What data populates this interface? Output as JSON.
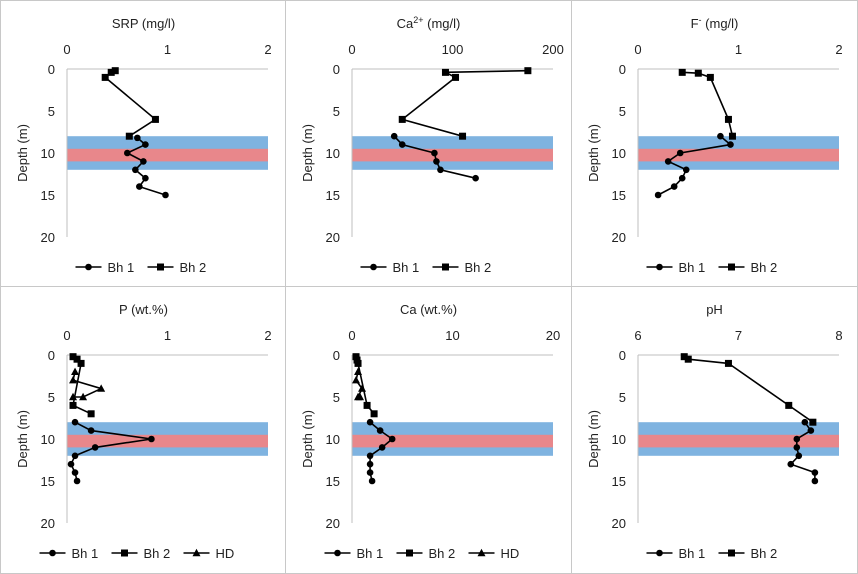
{
  "chart_data": [
    {
      "type": "line",
      "title": "SRP (mg/l)",
      "title_sup": "",
      "xlabel": "SRP (mg/l)",
      "ylabel": "Depth (m)",
      "xlim": [
        0,
        2
      ],
      "xticks": [
        "0",
        "1",
        "2"
      ],
      "ylim": [
        0,
        20
      ],
      "yticks": [
        "0",
        "5",
        "10",
        "15",
        "20"
      ],
      "bands": [
        {
          "from": 8,
          "to": 12,
          "color": "#7fb3e0"
        },
        {
          "from": 9.5,
          "to": 11,
          "color": "#e8878b"
        }
      ],
      "series": [
        {
          "name": "Bh 1",
          "marker": "circle",
          "points": [
            [
              0.7,
              8.2
            ],
            [
              0.78,
              9
            ],
            [
              0.6,
              10
            ],
            [
              0.76,
              11
            ],
            [
              0.68,
              12
            ],
            [
              0.78,
              13
            ],
            [
              0.72,
              14
            ],
            [
              0.98,
              15
            ]
          ]
        },
        {
          "name": "Bh 2",
          "marker": "square",
          "points": [
            [
              0.48,
              0.2
            ],
            [
              0.44,
              0.4
            ],
            [
              0.38,
              1
            ],
            [
              0.88,
              6
            ],
            [
              0.62,
              8
            ]
          ]
        }
      ]
    },
    {
      "type": "line",
      "title": "Ca",
      "title_sup": "2+",
      "title_rest": " (mg/l)",
      "xlabel": "Ca2+ (mg/l)",
      "ylabel": "Depth (m)",
      "xlim": [
        0,
        200
      ],
      "xticks": [
        "0",
        "100",
        "200"
      ],
      "ylim": [
        0,
        20
      ],
      "yticks": [
        "0",
        "5",
        "10",
        "15",
        "20"
      ],
      "bands": [
        {
          "from": 8,
          "to": 12,
          "color": "#7fb3e0"
        },
        {
          "from": 9.5,
          "to": 11,
          "color": "#e8878b"
        }
      ],
      "series": [
        {
          "name": "Bh 1",
          "marker": "circle",
          "points": [
            [
              42,
              8
            ],
            [
              50,
              9
            ],
            [
              82,
              10
            ],
            [
              84,
              11
            ],
            [
              88,
              12
            ],
            [
              123,
              13
            ]
          ]
        },
        {
          "name": "Bh 2",
          "marker": "square",
          "points": [
            [
              175,
              0.2
            ],
            [
              93,
              0.4
            ],
            [
              103,
              1
            ],
            [
              50,
              6
            ],
            [
              110,
              8
            ]
          ]
        }
      ]
    },
    {
      "type": "line",
      "title": "F",
      "title_sup": "-",
      "title_rest": " (mg/l)",
      "xlabel": "F- (mg/l)",
      "ylabel": "Depth (m)",
      "xlim": [
        0,
        2
      ],
      "xticks": [
        "0",
        "1",
        "2"
      ],
      "ylim": [
        0,
        20
      ],
      "yticks": [
        "0",
        "5",
        "10",
        "15",
        "20"
      ],
      "bands": [
        {
          "from": 8,
          "to": 12,
          "color": "#7fb3e0"
        },
        {
          "from": 9.5,
          "to": 11,
          "color": "#e8878b"
        }
      ],
      "series": [
        {
          "name": "Bh 1",
          "marker": "circle",
          "points": [
            [
              0.82,
              8
            ],
            [
              0.92,
              9
            ],
            [
              0.42,
              10
            ],
            [
              0.3,
              11
            ],
            [
              0.48,
              12
            ],
            [
              0.44,
              13
            ],
            [
              0.36,
              14
            ],
            [
              0.2,
              15
            ]
          ]
        },
        {
          "name": "Bh 2",
          "marker": "square",
          "points": [
            [
              0.44,
              0.4
            ],
            [
              0.6,
              0.5
            ],
            [
              0.72,
              1
            ],
            [
              0.9,
              6
            ],
            [
              0.94,
              8
            ]
          ]
        }
      ]
    },
    {
      "type": "line",
      "title": "P (wt.%)",
      "title_sup": "",
      "xlabel": "P (wt.%)",
      "ylabel": "Depth (m)",
      "xlim": [
        0,
        2
      ],
      "xticks": [
        "0",
        "1",
        "2"
      ],
      "ylim": [
        0,
        20
      ],
      "yticks": [
        "0",
        "5",
        "10",
        "15",
        "20"
      ],
      "bands": [
        {
          "from": 8,
          "to": 12,
          "color": "#7fb3e0"
        },
        {
          "from": 9.5,
          "to": 11,
          "color": "#e8878b"
        }
      ],
      "series": [
        {
          "name": "Bh 1",
          "marker": "circle",
          "points": [
            [
              0.08,
              8
            ],
            [
              0.24,
              9
            ],
            [
              0.84,
              10
            ],
            [
              0.28,
              11
            ],
            [
              0.08,
              12
            ],
            [
              0.04,
              13
            ],
            [
              0.08,
              14
            ],
            [
              0.1,
              15
            ]
          ]
        },
        {
          "name": "Bh 2",
          "marker": "square",
          "points": [
            [
              0.06,
              0.2
            ],
            [
              0.1,
              0.5
            ],
            [
              0.14,
              1
            ],
            [
              0.06,
              6
            ],
            [
              0.24,
              7
            ]
          ]
        },
        {
          "name": "HD",
          "marker": "triangle",
          "points": [
            [
              0.08,
              2
            ],
            [
              0.06,
              3
            ],
            [
              0.34,
              4
            ],
            [
              0.16,
              5
            ],
            [
              0.06,
              5
            ]
          ]
        }
      ]
    },
    {
      "type": "line",
      "title": "Ca (wt.%)",
      "title_sup": "",
      "xlabel": "Ca (wt.%)",
      "ylabel": "Depth (m)",
      "xlim": [
        0,
        20
      ],
      "xticks": [
        "0",
        "10",
        "20"
      ],
      "ylim": [
        0,
        20
      ],
      "yticks": [
        "0",
        "5",
        "10",
        "15",
        "20"
      ],
      "bands": [
        {
          "from": 8,
          "to": 12,
          "color": "#7fb3e0"
        },
        {
          "from": 9.5,
          "to": 11,
          "color": "#e8878b"
        }
      ],
      "series": [
        {
          "name": "Bh 1",
          "marker": "circle",
          "points": [
            [
              1.8,
              8
            ],
            [
              2.8,
              9
            ],
            [
              4.0,
              10
            ],
            [
              3.0,
              11
            ],
            [
              1.8,
              12
            ],
            [
              1.8,
              13
            ],
            [
              1.8,
              14
            ],
            [
              2.0,
              15
            ]
          ]
        },
        {
          "name": "Bh 2",
          "marker": "square",
          "points": [
            [
              0.4,
              0.2
            ],
            [
              0.5,
              0.6
            ],
            [
              0.6,
              1
            ],
            [
              1.5,
              6
            ],
            [
              2.2,
              7
            ]
          ]
        },
        {
          "name": "HD",
          "marker": "triangle",
          "points": [
            [
              0.6,
              2
            ],
            [
              0.4,
              3
            ],
            [
              1.0,
              4
            ],
            [
              0.6,
              5
            ],
            [
              0.8,
              5
            ]
          ]
        }
      ]
    },
    {
      "type": "line",
      "title": "pH",
      "title_sup": "",
      "xlabel": "pH",
      "ylabel": "Depth (m)",
      "xlim": [
        6,
        8
      ],
      "xticks": [
        "6",
        "7",
        "8"
      ],
      "ylim": [
        0,
        20
      ],
      "yticks": [
        "0",
        "5",
        "10",
        "15",
        "20"
      ],
      "bands": [
        {
          "from": 8,
          "to": 12,
          "color": "#7fb3e0"
        },
        {
          "from": 9.5,
          "to": 11,
          "color": "#e8878b"
        }
      ],
      "series": [
        {
          "name": "Bh 1",
          "marker": "circle",
          "points": [
            [
              7.66,
              8
            ],
            [
              7.72,
              9
            ],
            [
              7.58,
              10
            ],
            [
              7.58,
              11
            ],
            [
              7.6,
              12
            ],
            [
              7.52,
              13
            ],
            [
              7.76,
              14
            ],
            [
              7.76,
              15
            ]
          ]
        },
        {
          "name": "Bh 2",
          "marker": "square",
          "points": [
            [
              6.46,
              0.2
            ],
            [
              6.5,
              0.5
            ],
            [
              6.9,
              1
            ],
            [
              7.5,
              6
            ],
            [
              7.74,
              8
            ]
          ]
        }
      ]
    }
  ]
}
